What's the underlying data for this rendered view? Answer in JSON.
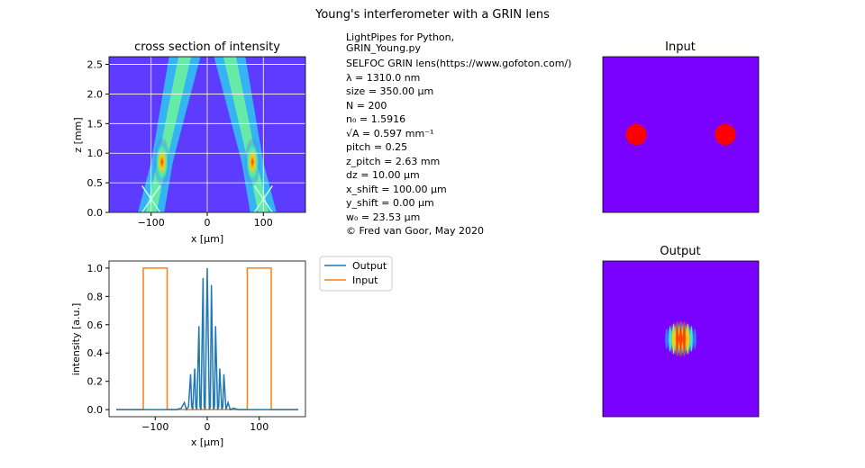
{
  "figure": {
    "suptitle": "Young's interferometer with a GRIN lens"
  },
  "info": {
    "header1": "LightPipes for Python,",
    "header2": "GRIN_Young.py",
    "lines": [
      "SELFOC GRIN lens(https://www.gofoton.com/)",
      "λ = 1310.0 nm",
      "size = 350.00 μm",
      "N = 200",
      "n₀ = 1.5916",
      "√A = 0.597 mm⁻¹",
      "pitch = 0.25",
      "z_pitch = 2.63 mm",
      "dz = 10.00 μm",
      "x_shift = 100.00 μm",
      "y_shift = 0.00 μm",
      "w₀ = 23.53 μm",
      "© Fred van Goor, May 2020"
    ]
  },
  "colors": {
    "output": "#1f77b4",
    "input": "#ff7f0e",
    "jet_low": "#5e3cff",
    "circle": "#ff0000",
    "field_bg": "#7a00ff"
  },
  "chart_data": [
    {
      "type": "heatmap",
      "title": "cross section of intensity",
      "xlabel": "x [μm]",
      "ylabel": "z [mm]",
      "xlim": [
        -175,
        175
      ],
      "ylim": [
        0,
        2.63
      ],
      "xticks": [
        "−100",
        "0",
        "100"
      ],
      "xtick_values": [
        -100,
        0,
        100
      ],
      "yticks": [
        "0.0",
        "0.5",
        "1.0",
        "1.5",
        "2.0",
        "2.5"
      ],
      "ytick_values": [
        0,
        0.5,
        1.0,
        1.5,
        2.0,
        2.5
      ],
      "grid": true,
      "beams": [
        {
          "x_start": -100,
          "x_end": -40,
          "peak_z": 0.85
        },
        {
          "x_start": 100,
          "x_end": 40,
          "peak_z": 0.85
        }
      ]
    },
    {
      "type": "line",
      "xlabel": "x [μm]",
      "ylabel": "intensity [a.u.]",
      "xlim": [
        -175,
        175
      ],
      "ylim": [
        0,
        1.0
      ],
      "xticks": [
        "−100",
        "0",
        "100"
      ],
      "xtick_values": [
        -100,
        0,
        100
      ],
      "yticks": [
        "0.0",
        "0.2",
        "0.4",
        "0.6",
        "0.8",
        "1.0"
      ],
      "ytick_values": [
        0,
        0.2,
        0.4,
        0.6,
        0.8,
        1.0
      ],
      "legend_location": "outside upper right",
      "series": [
        {
          "name": "Output",
          "x": [
            -175,
            -60,
            -50,
            -44,
            -40,
            -36,
            -32,
            -30,
            -28,
            -24,
            -22,
            -20,
            -16,
            -14,
            -12,
            -8,
            -6,
            -4,
            0,
            4,
            6,
            8,
            12,
            14,
            16,
            20,
            22,
            24,
            28,
            30,
            32,
            36,
            40,
            44,
            50,
            60,
            175
          ],
          "y": [
            0,
            0,
            0.01,
            0.05,
            0.0,
            0.02,
            0.25,
            0.02,
            0.0,
            0.29,
            0.02,
            0.0,
            0.59,
            0.02,
            0.0,
            0.93,
            0.02,
            0.0,
            1.0,
            0.0,
            0.02,
            0.88,
            0.0,
            0.02,
            0.59,
            0.0,
            0.02,
            0.29,
            0.0,
            0.02,
            0.25,
            0.0,
            0.05,
            0.0,
            0.01,
            0,
            0
          ]
        },
        {
          "name": "Input",
          "x": [
            -175,
            -123,
            -123,
            -77,
            -77,
            77,
            77,
            123,
            123,
            175
          ],
          "y": [
            0,
            0,
            1,
            1,
            0,
            0,
            1,
            1,
            0,
            0
          ]
        }
      ]
    },
    {
      "type": "heatmap",
      "title": "Input",
      "circles": [
        {
          "x_um": -100,
          "y_um": 0,
          "radius_um": 23.5
        },
        {
          "x_um": 100,
          "y_um": 0,
          "radius_um": 23.5
        }
      ]
    },
    {
      "type": "heatmap",
      "title": "Output",
      "fringe_center_um": [
        0,
        0
      ],
      "fringe_spacing_um": 8
    }
  ]
}
